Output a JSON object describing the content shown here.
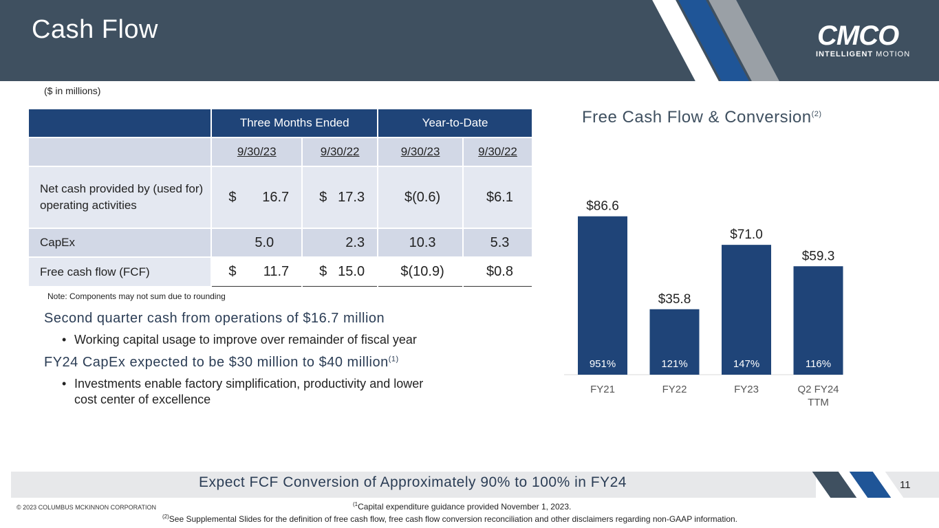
{
  "header": {
    "title": "Cash Flow",
    "logo_word": "CMCO",
    "logo_sub_bold": "INTELLIGENT",
    "logo_sub_light": " MOTION"
  },
  "units": "($ in millions)",
  "table": {
    "group_headers": [
      "Three Months Ended",
      "Year-to-Date"
    ],
    "date_headers": [
      "9/30/23",
      "9/30/22",
      "9/30/23",
      "9/30/22"
    ],
    "rows": [
      {
        "label": "Net cash provided by (used for) operating activities",
        "cells": [
          [
            "$",
            "16.7"
          ],
          [
            "$",
            "17.3"
          ],
          [
            "",
            "$(0.6)"
          ],
          [
            "",
            "$6.1"
          ]
        ]
      },
      {
        "label": "CapEx",
        "cells": [
          [
            "",
            "5.0"
          ],
          [
            "",
            "2.3"
          ],
          [
            "",
            "10.3"
          ],
          [
            "",
            "5.3"
          ]
        ]
      },
      {
        "label": "Free cash flow (FCF)",
        "cells": [
          [
            "$",
            "11.7"
          ],
          [
            "$",
            "15.0"
          ],
          [
            "",
            "$(10.9)"
          ],
          [
            "",
            "$0.8"
          ]
        ]
      }
    ]
  },
  "note": "Note: Components may not sum due to rounding",
  "bullets": {
    "h1": "Second quarter cash from operations of $16.7 million",
    "i1": "Working capital usage to improve over remainder of fiscal year",
    "h2": "FY24 CapEx expected to be $30 million to $40 million",
    "h2_sup": "(1)",
    "i2": "Investments enable factory simplification, productivity and lower cost center of excellence"
  },
  "chart_title": "Free Cash Flow & Conversion",
  "chart_title_sup": "(2)",
  "chart_data": {
    "type": "bar",
    "title": "Free Cash Flow & Conversion",
    "categories": [
      "FY21",
      "FY22",
      "FY23",
      "Q2 FY24 TTM"
    ],
    "category_lines": [
      [
        "FY21"
      ],
      [
        "FY22"
      ],
      [
        "FY23"
      ],
      [
        "Q2 FY24",
        "TTM"
      ]
    ],
    "values": [
      86.6,
      35.8,
      71.0,
      59.3
    ],
    "value_labels": [
      "$86.6",
      "$35.8",
      "$71.0",
      "$59.3"
    ],
    "conversion_labels": [
      "951%",
      "121%",
      "147%",
      "116%"
    ],
    "ylim": [
      0,
      100
    ],
    "grid": false,
    "bar_color": "#1f4478"
  },
  "footer": {
    "banner": "Expect FCF Conversion of Approximately 90% to 100% in FY24",
    "page": "11",
    "copyright": "© 2023 COLUMBUS MCKINNON CORPORATION",
    "fn1_sup": "(1",
    "fn1": "Capital expenditure guidance provided November 1, 2023.",
    "fn2_sup": "(2)",
    "fn2": "See Supplemental Slides for the definition of free cash flow, free cash flow conversion reconciliation and other disclaimers regarding non-GAAP information."
  },
  "colors": {
    "header": "#3f5060",
    "navy": "#1f4478",
    "blue": "#1f5597",
    "gray": "#9aa0a6"
  }
}
